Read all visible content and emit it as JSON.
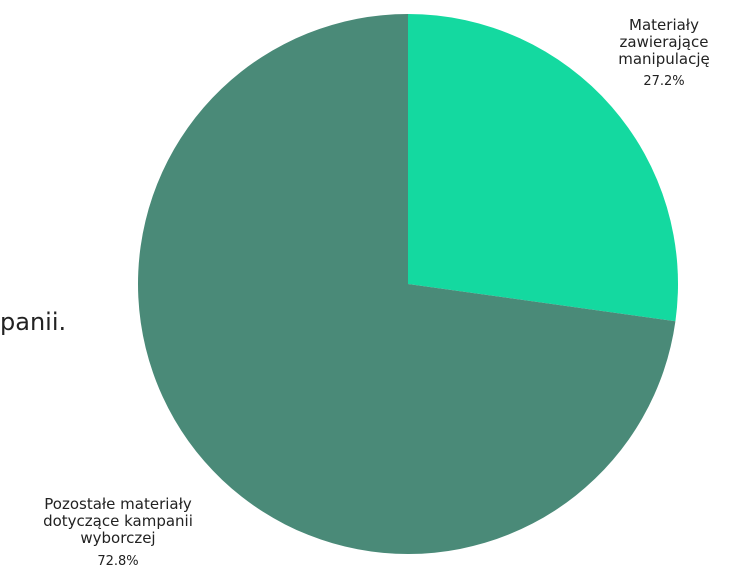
{
  "background_text": "panii.",
  "chart_data": {
    "type": "pie",
    "slices": [
      {
        "label_lines": [
          "Materiały",
          "zawierające",
          "manipulację"
        ],
        "value": 27.2,
        "value_label": "27.2%",
        "color": "#14d9a0"
      },
      {
        "label_lines": [
          "Pozostałe materiały",
          "dotyczące kampanii",
          "wyborczej"
        ],
        "value": 72.8,
        "value_label": "72.8%",
        "color": "#4a8a78"
      }
    ]
  }
}
